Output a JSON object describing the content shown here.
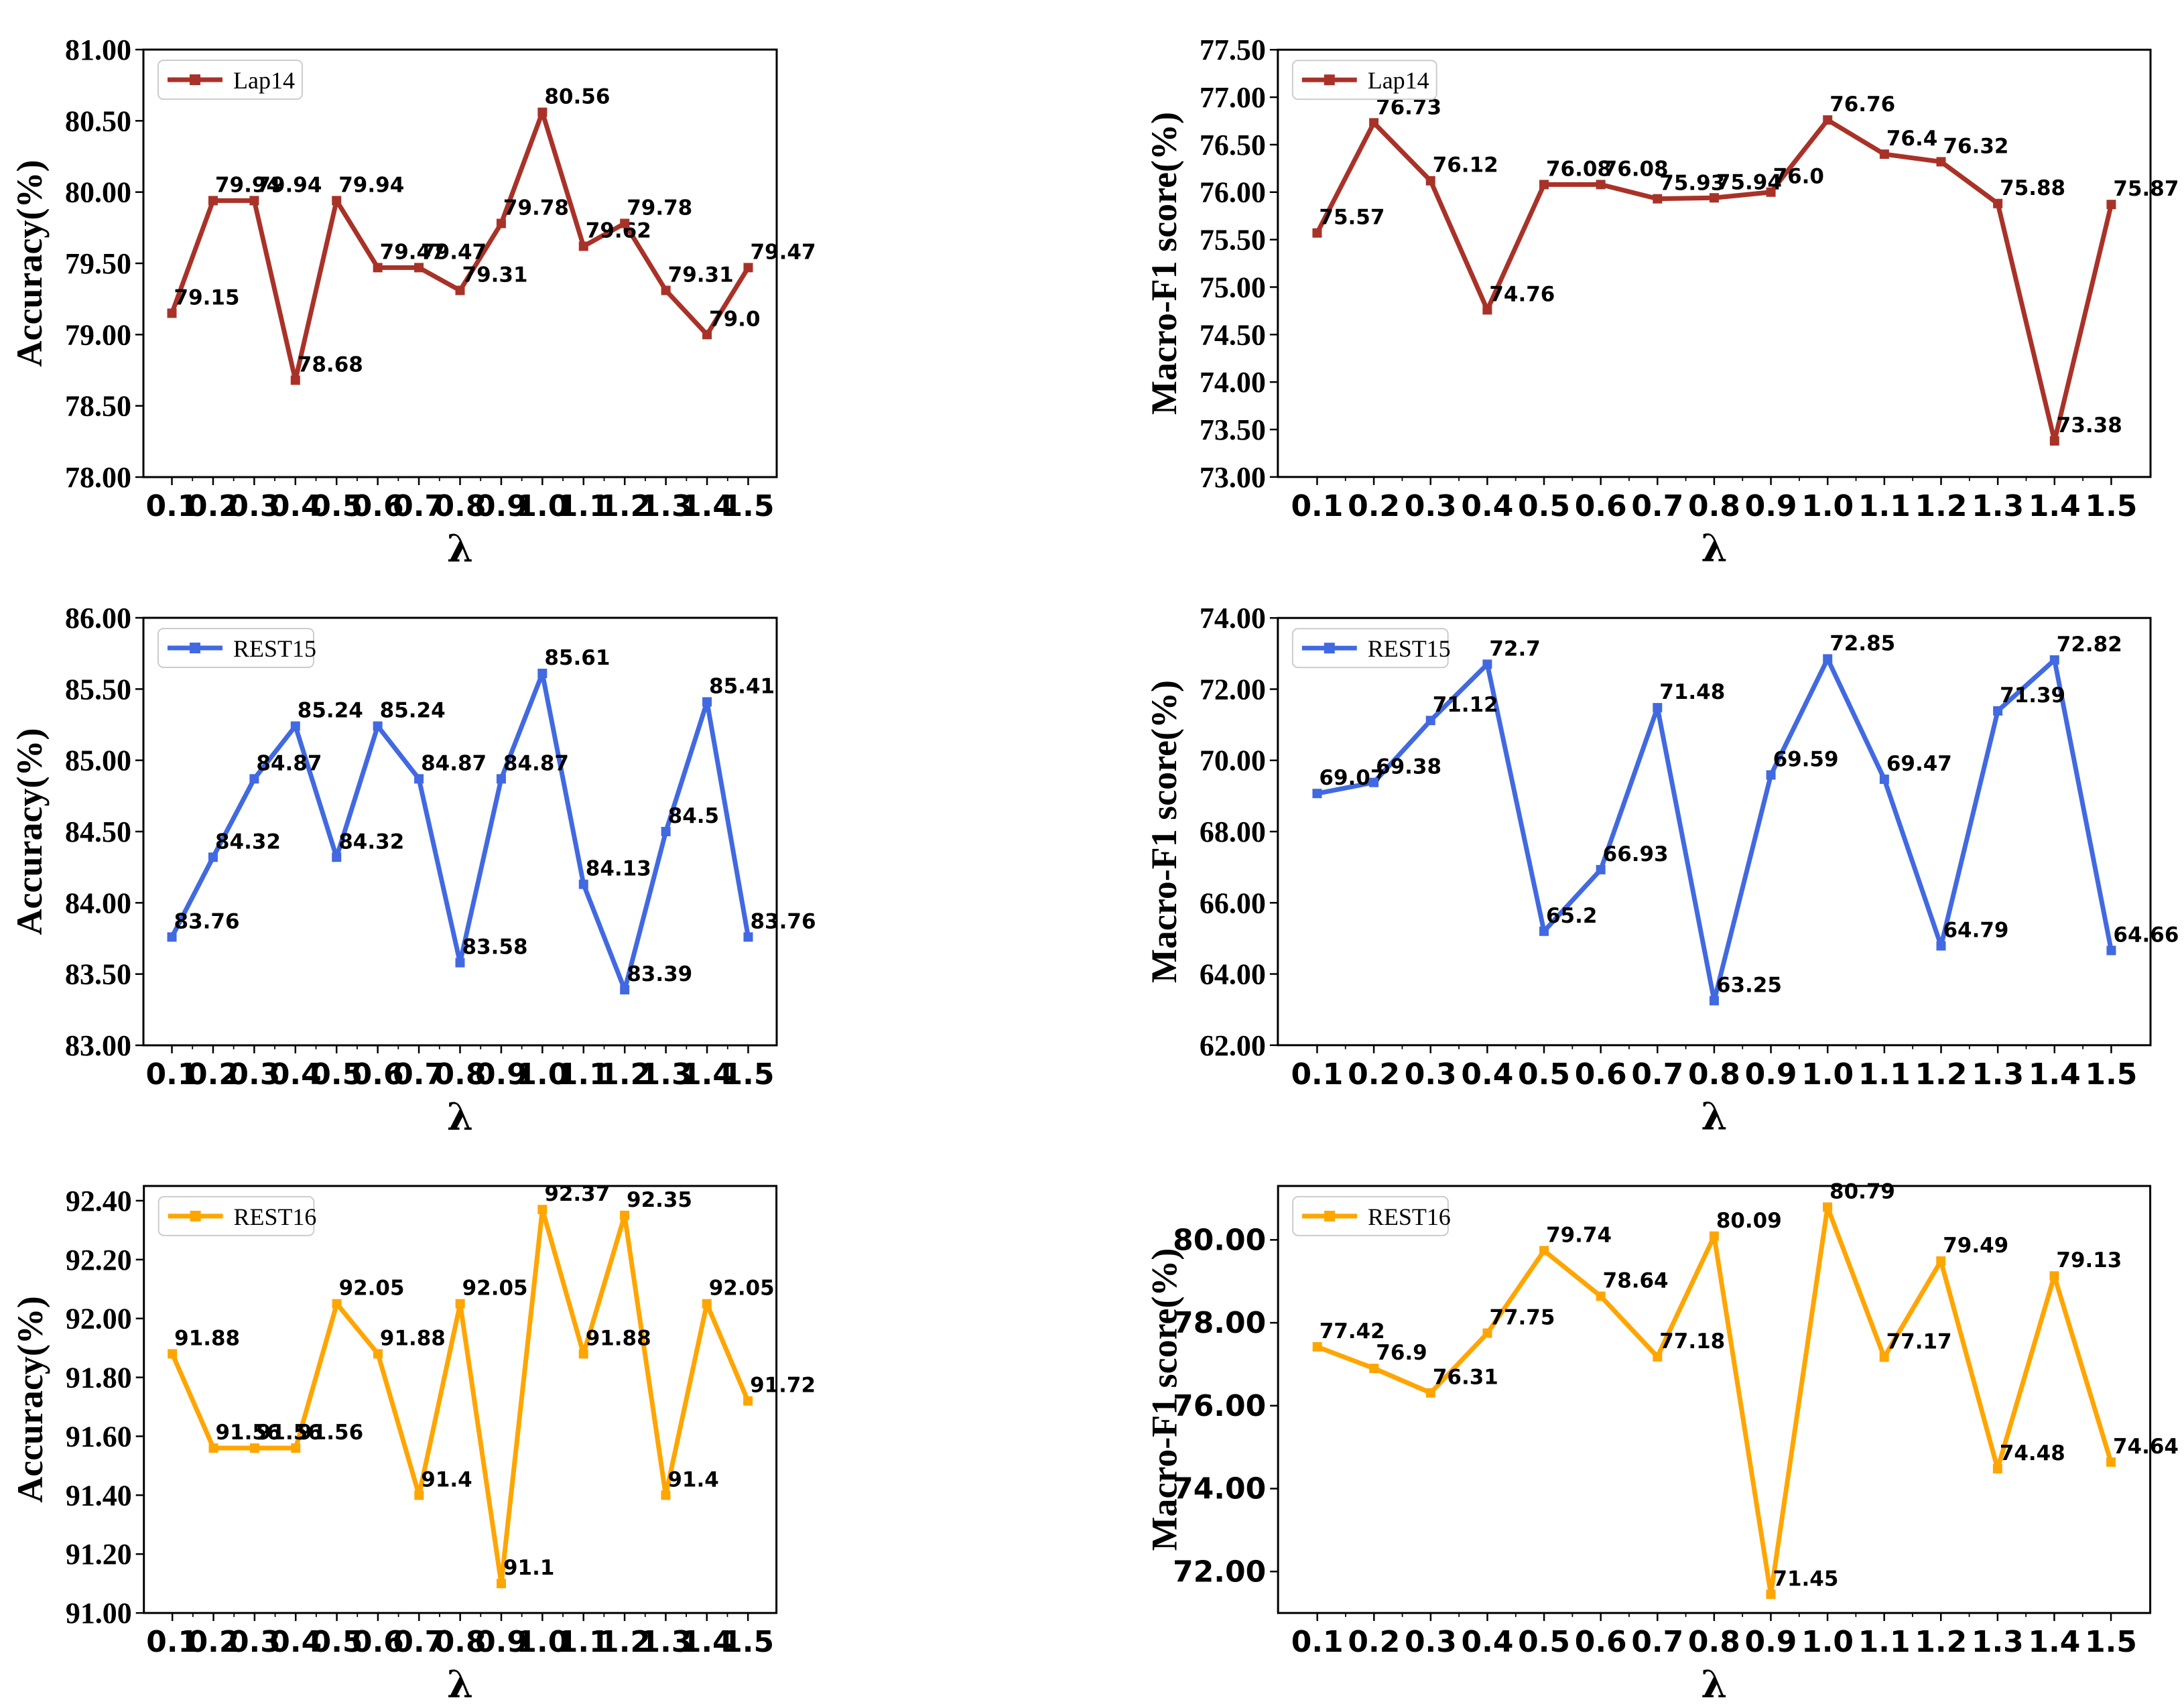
{
  "figure": {
    "background": "#ffffff",
    "x_label": "λ",
    "x_ticks": [
      "0.1",
      "0.2",
      "0.3",
      "0.4",
      "0.5",
      "0.6",
      "0.7",
      "0.8",
      "0.9",
      "1.0",
      "1.1",
      "1.2",
      "1.3",
      "1.4",
      "1.5"
    ],
    "x_values": [
      0.1,
      0.2,
      0.3,
      0.4,
      0.5,
      0.6,
      0.7,
      0.8,
      0.9,
      1.0,
      1.1,
      1.2,
      1.3,
      1.4,
      1.5
    ],
    "colors": {
      "lap14": "#A93228",
      "rest15": "#4169E1",
      "rest16": "#FFA500"
    },
    "axis_color": "#000000",
    "legend_border_color": "#cccccc"
  },
  "chart_data": [
    {
      "type": "line",
      "id": "accuracy-lap14",
      "title": "",
      "ylabel": "Accuracy(%)",
      "xlabel": "λ",
      "legend": "Lap14",
      "legend_position": "upper left",
      "grid": false,
      "color": "#A93228",
      "tick_font": "serif",
      "column": "left",
      "values": [
        79.15,
        79.94,
        79.94,
        78.68,
        79.94,
        79.47,
        79.47,
        79.31,
        79.78,
        80.56,
        79.62,
        79.78,
        79.31,
        79.0,
        79.47
      ],
      "point_labels": [
        "79.15",
        "79.94",
        "79.94",
        "78.68",
        "79.94",
        "79.47",
        "79.47",
        "79.31",
        "79.78",
        "80.56",
        "79.62",
        "79.78",
        "79.31",
        "79.0",
        "79.47"
      ],
      "ylim": [
        78.0,
        81.0
      ],
      "yticks": [
        78.0,
        78.5,
        79.0,
        79.5,
        80.0,
        80.5,
        81.0
      ],
      "ytick_labels": [
        "78.00",
        "78.50",
        "79.00",
        "79.50",
        "80.00",
        "80.50",
        "81.00"
      ]
    },
    {
      "type": "line",
      "id": "macro-f1-lap14",
      "title": "",
      "ylabel": "Macro-F1 score(%)",
      "xlabel": "λ",
      "legend": "Lap14",
      "legend_position": "upper left",
      "grid": false,
      "color": "#A93228",
      "tick_font": "serif",
      "column": "right",
      "values": [
        75.57,
        76.73,
        76.12,
        74.76,
        76.08,
        76.08,
        75.93,
        75.94,
        76.0,
        76.76,
        76.4,
        76.32,
        75.88,
        73.38,
        75.87
      ],
      "point_labels": [
        "75.57",
        "76.73",
        "76.12",
        "74.76",
        "76.08",
        "76.08",
        "75.93",
        "75.94",
        "76.0",
        "76.76",
        "76.4",
        "76.32",
        "75.88",
        "73.38",
        "75.87"
      ],
      "ylim": [
        73.0,
        77.5
      ],
      "yticks": [
        73.0,
        73.5,
        74.0,
        74.5,
        75.0,
        75.5,
        76.0,
        76.5,
        77.0,
        77.5
      ],
      "ytick_labels": [
        "73.00",
        "73.50",
        "74.00",
        "74.50",
        "75.00",
        "75.50",
        "76.00",
        "76.50",
        "77.00",
        "77.50"
      ]
    },
    {
      "type": "line",
      "id": "accuracy-rest15",
      "title": "",
      "ylabel": "Accuracy(%)",
      "xlabel": "λ",
      "legend": "REST15",
      "legend_position": "upper left",
      "grid": false,
      "color": "#4169E1",
      "tick_font": "serif",
      "column": "left",
      "values": [
        83.76,
        84.32,
        84.87,
        85.24,
        84.32,
        85.24,
        84.87,
        83.58,
        84.87,
        85.61,
        84.13,
        83.39,
        84.5,
        85.41,
        83.76
      ],
      "point_labels": [
        "83.76",
        "84.32",
        "84.87",
        "85.24",
        "84.32",
        "85.24",
        "84.87",
        "83.58",
        "84.87",
        "85.61",
        "84.13",
        "83.39",
        "84.5",
        "85.41",
        "83.76"
      ],
      "ylim": [
        83.0,
        86.0
      ],
      "yticks": [
        83.0,
        83.5,
        84.0,
        84.5,
        85.0,
        85.5,
        86.0
      ],
      "ytick_labels": [
        "83.00",
        "83.50",
        "84.00",
        "84.50",
        "85.00",
        "85.50",
        "86.00"
      ]
    },
    {
      "type": "line",
      "id": "macro-f1-rest15",
      "title": "",
      "ylabel": "Macro-F1 score(%)",
      "xlabel": "λ",
      "legend": "REST15",
      "legend_position": "upper left",
      "grid": false,
      "color": "#4169E1",
      "tick_font": "serif",
      "column": "right",
      "values": [
        69.07,
        69.38,
        71.12,
        72.7,
        65.2,
        66.93,
        71.48,
        63.25,
        69.59,
        72.85,
        69.47,
        64.79,
        71.39,
        72.82,
        64.66
      ],
      "point_labels": [
        "69.07",
        "69.38",
        "71.12",
        "72.7",
        "65.2",
        "66.93",
        "71.48",
        "63.25",
        "69.59",
        "72.85",
        "69.47",
        "64.79",
        "71.39",
        "72.82",
        "64.66"
      ],
      "ylim": [
        62.0,
        74.0
      ],
      "yticks": [
        62.0,
        64.0,
        66.0,
        68.0,
        70.0,
        72.0,
        74.0
      ],
      "ytick_labels": [
        "62.00",
        "64.00",
        "66.00",
        "68.00",
        "70.00",
        "72.00",
        "74.00"
      ]
    },
    {
      "type": "line",
      "id": "accuracy-rest16",
      "title": "",
      "ylabel": "Accuracy(%)",
      "xlabel": "λ",
      "legend": "REST16",
      "legend_position": "upper left",
      "grid": false,
      "color": "#FFA500",
      "tick_font": "serif",
      "column": "left",
      "values": [
        91.88,
        91.56,
        91.56,
        91.56,
        92.05,
        91.88,
        91.4,
        92.05,
        91.1,
        92.37,
        91.88,
        92.35,
        91.4,
        92.05,
        91.72
      ],
      "point_labels": [
        "91.88",
        "91.56",
        "91.56",
        "91.56",
        "92.05",
        "91.88",
        "91.4",
        "92.05",
        "91.1",
        "92.37",
        "91.88",
        "92.35",
        "91.4",
        "92.05",
        "91.72"
      ],
      "ylim": [
        91.0,
        92.45
      ],
      "yticks": [
        91.0,
        91.2,
        91.4,
        91.6,
        91.8,
        92.0,
        92.2,
        92.4
      ],
      "ytick_labels": [
        "91.00",
        "91.20",
        "91.40",
        "91.60",
        "91.80",
        "92.00",
        "92.20",
        "92.40"
      ]
    },
    {
      "type": "line",
      "id": "macro-f1-rest16",
      "title": "",
      "ylabel": "Macro-F1 score(%)",
      "xlabel": "λ",
      "legend": "REST16",
      "legend_position": "upper left",
      "grid": false,
      "color": "#FFA500",
      "tick_font": "sans",
      "column": "right",
      "values": [
        77.42,
        76.9,
        76.31,
        77.75,
        79.74,
        78.64,
        77.18,
        80.09,
        71.45,
        80.79,
        77.17,
        79.49,
        74.48,
        79.13,
        74.64
      ],
      "point_labels": [
        "77.42",
        "76.9",
        "76.31",
        "77.75",
        "79.74",
        "78.64",
        "77.18",
        "80.09",
        "71.45",
        "80.79",
        "77.17",
        "79.49",
        "74.48",
        "79.13",
        "74.64"
      ],
      "ylim": [
        71.0,
        81.3
      ],
      "yticks": [
        72.0,
        74.0,
        76.0,
        78.0,
        80.0
      ],
      "ytick_labels": [
        "72.00",
        "74.00",
        "76.00",
        "78.00",
        "80.00"
      ]
    }
  ]
}
